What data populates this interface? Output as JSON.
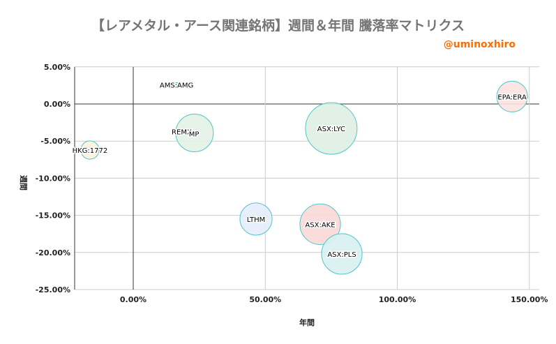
{
  "chart_data": {
    "type": "bubble",
    "title": "【レアメタル・アース関連銘柄】週間＆年間 騰落率マトリクス",
    "subtitle": "@uminoxhiro",
    "xlabel": "年間",
    "ylabel": "週間",
    "xlim": [
      -0.22,
      1.54
    ],
    "ylim": [
      -0.25,
      0.05
    ],
    "x_ticks": [
      0,
      0.5,
      1.0,
      1.5
    ],
    "x_tick_labels": [
      "0.00%",
      "50.00%",
      "100.00%",
      "150.00%"
    ],
    "y_ticks": [
      0.05,
      0,
      -0.05,
      -0.1,
      -0.15,
      -0.2,
      -0.25
    ],
    "y_tick_labels": [
      "5.00%",
      "0.00%",
      "-5.00%",
      "-10.00%",
      "-15.00%",
      "-20.00%",
      "-25.00%"
    ],
    "grid": true,
    "bubble_stroke": "#4ec5c9",
    "title_color": "#757575",
    "subtitle_color": "#ff6d01",
    "points": [
      {
        "label": "AMS:AMG",
        "x": 0.164,
        "y": 0.026,
        "size": 1,
        "color": "#e0f4f4"
      },
      {
        "label": "REMX",
        "label2": "MP",
        "x": 0.232,
        "y": -0.039,
        "size": 81,
        "color": "#e2f2e6"
      },
      {
        "label": "HKG:1772",
        "x": -0.164,
        "y": -0.062,
        "size": 19,
        "color": "#fdf3dc"
      },
      {
        "label": "ASX:LYC",
        "x": 0.75,
        "y": -0.033,
        "size": 152,
        "color": "#dff0e3"
      },
      {
        "label": "EPA:ERA",
        "x": 1.435,
        "y": 0.01,
        "size": 54,
        "color": "#fbe3e1"
      },
      {
        "label": "LTHM",
        "x": 0.465,
        "y": -0.155,
        "size": 59,
        "color": "#e3edfb"
      },
      {
        "label": "ASX:AKE",
        "x": 0.708,
        "y": -0.162,
        "size": 94,
        "color": "#f9d9d7"
      },
      {
        "label": "ASX:PLS",
        "x": 0.79,
        "y": -0.202,
        "size": 94,
        "color": "#d8f1f1"
      }
    ]
  }
}
